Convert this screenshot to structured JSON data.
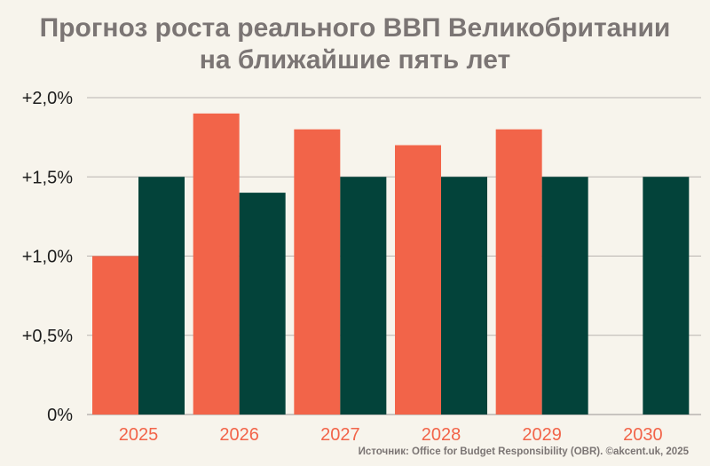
{
  "chart_data": {
    "type": "bar",
    "title_line1": "Прогноз роста реального ВВП Великобритании",
    "title_line2": "на ближайшие пять лет",
    "categories": [
      "2025",
      "2026",
      "2027",
      "2028",
      "2029",
      "2030"
    ],
    "series": [
      {
        "values": [
          1.0,
          1.9,
          1.8,
          1.7,
          1.8,
          null
        ],
        "color": "#f26449"
      },
      {
        "values": [
          1.5,
          1.4,
          1.5,
          1.5,
          1.5,
          1.5
        ],
        "color": "#03433a"
      }
    ],
    "y_ticks": [
      {
        "value": 0,
        "label": "0%"
      },
      {
        "value": 0.5,
        "label": "+0,5%"
      },
      {
        "value": 1.0,
        "label": "+1,0%"
      },
      {
        "value": 1.5,
        "label": "+1,5%"
      },
      {
        "value": 2.0,
        "label": "+2,0%"
      }
    ],
    "ylim": [
      0,
      2.0
    ],
    "grid": true,
    "category_label_color": "#f26449",
    "source": "Источник: Office for Budget Responsibility (OBR). ©akcent.uk, 2025"
  }
}
